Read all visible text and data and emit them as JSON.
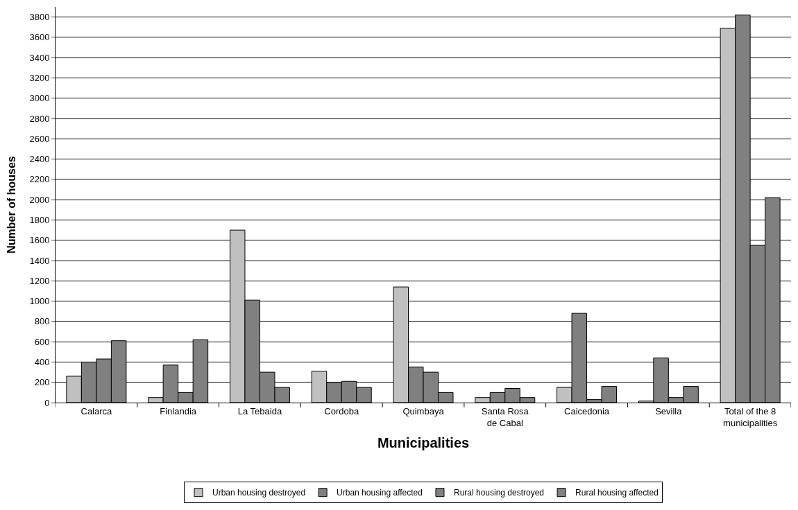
{
  "chart_data": {
    "type": "bar",
    "xlabel": "Municipalities",
    "ylabel": "Number of houses",
    "categories": [
      "Calarca",
      "Finlandia",
      "La Tebaida",
      "Cordoba",
      "Quimbaya",
      "Santa Rosa\nde Cabal",
      "Caicedonia",
      "Sevilla",
      "Total of the 8\nmunicipalities"
    ],
    "series": [
      {
        "name": "Urban housing destroyed",
        "color": "#c0c0c0",
        "values": [
          260,
          50,
          1700,
          310,
          1140,
          50,
          150,
          15,
          3690
        ]
      },
      {
        "name": "Urban housing affected",
        "color": "#808080",
        "values": [
          400,
          370,
          1010,
          200,
          350,
          100,
          880,
          440,
          3820
        ]
      },
      {
        "name": "Rural housing destroyed",
        "color": "#808080",
        "values": [
          430,
          100,
          300,
          210,
          300,
          140,
          30,
          50,
          1550
        ]
      },
      {
        "name": "Rural housing affected",
        "color": "#808080",
        "values": [
          610,
          620,
          150,
          150,
          100,
          50,
          160,
          160,
          2020
        ]
      }
    ],
    "ylim": [
      0,
      3900
    ],
    "yticks": [
      0,
      200,
      400,
      600,
      800,
      1000,
      1200,
      1400,
      1600,
      1800,
      2000,
      2200,
      2400,
      2600,
      2800,
      3000,
      3200,
      3400,
      3600,
      3800
    ],
    "grid": "y",
    "legend": "bottom"
  }
}
